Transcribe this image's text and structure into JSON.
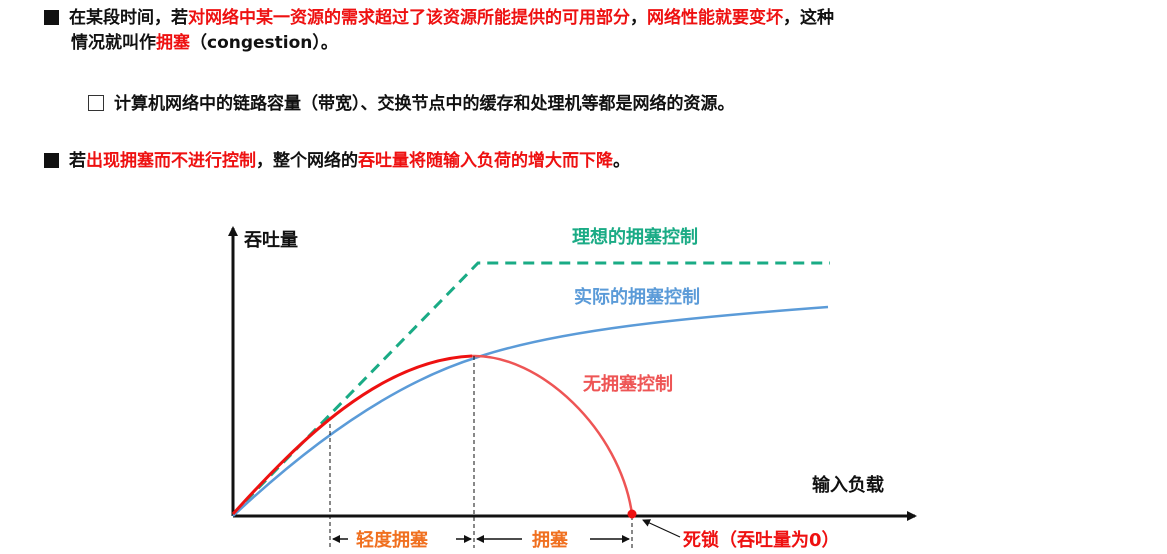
{
  "para1": {
    "s1": "在某段时间，若",
    "s2": "对网络中某一资源的需求超过了该资源所能提供的可用部分",
    "s3": "，",
    "s4": "网络性能就要变坏",
    "s5": "，这种",
    "s6": "情况就叫作",
    "s7": "拥塞",
    "s8": "（congestion）。"
  },
  "para2": {
    "text": "计算机网络中的链路容量（带宽）、交换节点中的缓存和处理机等都是网络的资源。"
  },
  "para3": {
    "s1": "若",
    "s2": "出现拥塞而不进行控制",
    "s3": "，整个网络的",
    "s4": "吞吐量将随输入负荷的增大而下降",
    "s5": "。"
  },
  "chart": {
    "y_axis_label": "吞吐量",
    "x_axis_label": "输入负载",
    "ideal_label": "理想的拥塞控制",
    "actual_label": "实际的拥塞控制",
    "none_label": "无拥塞控制",
    "light_label": "轻度拥塞",
    "congestion_label": "拥塞",
    "deadlock_label": "死锁（吞吐量为0）",
    "colors": {
      "ideal": "#1aab85",
      "actual": "#5b9bd8",
      "none_peak": "#ee1111",
      "none_fall": "#ee5555",
      "label_orange": "#f07020",
      "axis": "#111111"
    }
  }
}
